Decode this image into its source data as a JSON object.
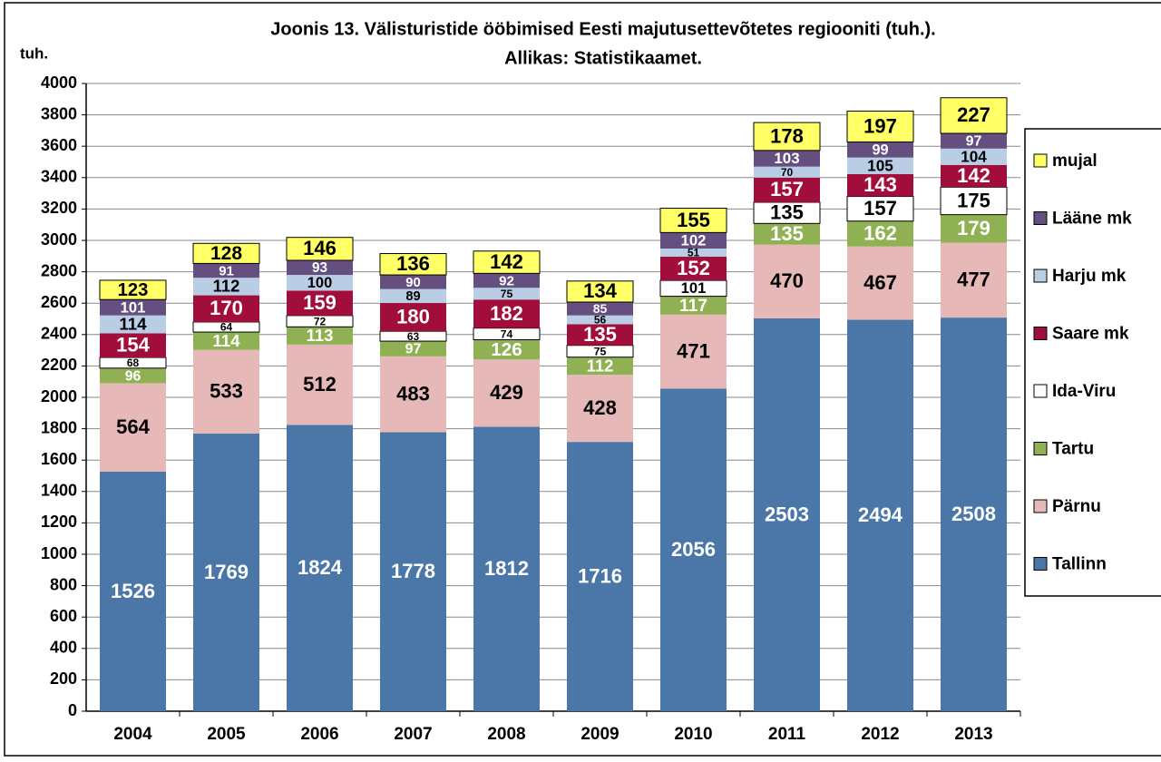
{
  "chart_data": {
    "type": "stacked_bar",
    "title": "Joonis 13. Välisturistide ööbimised Eesti majutusettevõtetes regiooniti (tuh.).",
    "subtitle": "Allikas: Statistikaamet.",
    "y_label": "tuh.",
    "categories": [
      "2004",
      "2005",
      "2006",
      "2007",
      "2008",
      "2009",
      "2010",
      "2011",
      "2012",
      "2013"
    ],
    "series": [
      {
        "name": "Tallinn",
        "color": "#4a76a8",
        "label_color": "#ffffff",
        "values": [
          1526,
          1769,
          1824,
          1778,
          1812,
          1716,
          2056,
          2503,
          2494,
          2508
        ]
      },
      {
        "name": "Pärnu",
        "color": "#e6b9b8",
        "label_color": "#000000",
        "values": [
          564,
          533,
          512,
          483,
          429,
          428,
          471,
          470,
          467,
          477
        ]
      },
      {
        "name": "Tartu",
        "color": "#8fb153",
        "label_color": "#ffffff",
        "values": [
          96,
          114,
          113,
          97,
          126,
          112,
          117,
          135,
          162,
          179
        ]
      },
      {
        "name": "Ida-Viru",
        "color": "#ffffff",
        "label_color": "#000000",
        "values": [
          68,
          64,
          72,
          63,
          74,
          75,
          101,
          135,
          157,
          175
        ]
      },
      {
        "name": "Saare mk",
        "color": "#a20e3c",
        "label_color": "#ffffff",
        "values": [
          154,
          170,
          159,
          180,
          182,
          135,
          152,
          157,
          143,
          142
        ]
      },
      {
        "name": "Harju mk",
        "color": "#b9cde5",
        "label_color": "#000000",
        "values": [
          114,
          112,
          100,
          89,
          75,
          56,
          51,
          70,
          105,
          104
        ]
      },
      {
        "name": "Lääne mk",
        "color": "#644f80",
        "label_color": "#ffffff",
        "values": [
          101,
          91,
          93,
          90,
          92,
          85,
          102,
          103,
          99,
          97
        ]
      },
      {
        "name": "mujal",
        "color": "#ffff66",
        "label_color": "#000000",
        "values": [
          123,
          128,
          146,
          136,
          142,
          134,
          155,
          178,
          197,
          227
        ]
      }
    ],
    "ylim": [
      0,
      4000
    ],
    "yticks": [
      0,
      200,
      400,
      600,
      800,
      1000,
      1200,
      1400,
      1600,
      1800,
      2000,
      2200,
      2400,
      2600,
      2800,
      3000,
      3200,
      3400,
      3600,
      3800,
      4000
    ],
    "grid": true,
    "legend": "right"
  }
}
